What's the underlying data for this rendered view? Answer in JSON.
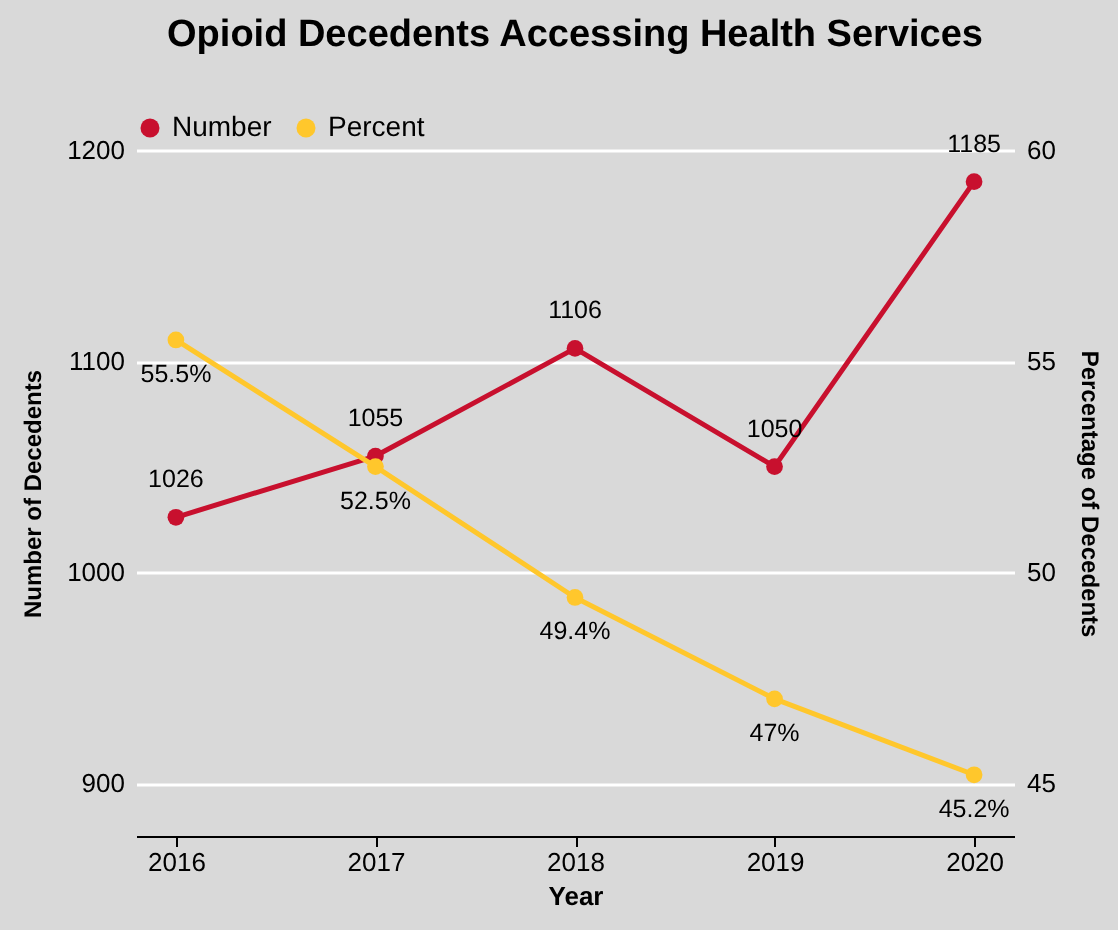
{
  "chart_data": {
    "type": "line",
    "title": "Opioid Decedents Accessing Health Services",
    "categories": [
      "2016",
      "2017",
      "2018",
      "2019",
      "2020"
    ],
    "series": [
      {
        "name": "Number",
        "color": "#c8102e",
        "values": [
          1026,
          1055,
          1106,
          1050,
          1185
        ],
        "value_labels": [
          "1026",
          "1055",
          "1106",
          "1050",
          "1185"
        ]
      },
      {
        "name": "Percent",
        "color": "#ffc72c",
        "axis": "y2",
        "values": [
          55.5,
          52.5,
          49.4,
          47,
          45.2
        ],
        "value_labels": [
          "55.5%",
          "52.5%",
          "49.4%",
          "47%",
          "45.2%"
        ]
      }
    ],
    "xlabel": "Year",
    "ylabel": "Number of Decedents",
    "y2label": "Percentage of Decedents",
    "ylim": [
      875,
      1200
    ],
    "yticks": [
      900,
      1000,
      1100,
      1200
    ],
    "y2lim": [
      43.75,
      60
    ],
    "y2ticks": [
      45,
      50,
      55,
      60
    ],
    "grid": "y",
    "legend": "top",
    "marker": "circle",
    "line_style": "solid"
  }
}
